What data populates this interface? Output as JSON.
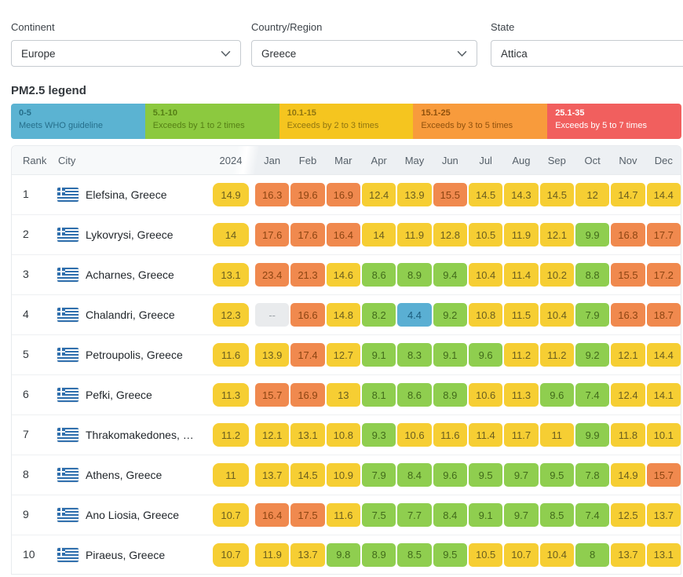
{
  "filters": [
    {
      "label": "Continent",
      "value": "Europe"
    },
    {
      "label": "Country/Region",
      "value": "Greece"
    },
    {
      "label": "State",
      "value": "Attica"
    }
  ],
  "legend": {
    "title": "PM2.5 legend",
    "bands": [
      {
        "range": "0-5",
        "desc": "Meets WHO guideline",
        "bg": "#5bb3d2",
        "fg": "#266f8b"
      },
      {
        "range": "5.1-10",
        "desc": "Exceeds by 1 to 2 times",
        "bg": "#8cc93f",
        "fg": "#557f15"
      },
      {
        "range": "10.1-15",
        "desc": "Exceeds by 2 to 3 times",
        "bg": "#f5c51f",
        "fg": "#8f7511"
      },
      {
        "range": "15.1-25",
        "desc": "Exceeds by 3 to 5 times",
        "bg": "#f89b3c",
        "fg": "#90510d"
      },
      {
        "range": "25.1-35",
        "desc": "Exceeds by 5 to 7 times",
        "bg": "#f15f5e",
        "fg": "#ffffff"
      }
    ]
  },
  "colors": {
    "blue": {
      "bg": "#5aafd3",
      "fg": "#1c5e7e"
    },
    "green": {
      "bg": "#8fce4f",
      "fg": "#426b1b"
    },
    "yellow": {
      "bg": "#f6ce33",
      "fg": "#6b5e1f"
    },
    "orange": {
      "bg": "#f0894e",
      "fg": "#8d4512"
    },
    "na": {
      "bg": "#e9ebed",
      "fg": "#9ba1a7"
    }
  },
  "table": {
    "rank_header": "Rank",
    "city_header": "City",
    "year_header": "2024",
    "month_headers": [
      "Jan",
      "Feb",
      "Mar",
      "Apr",
      "May",
      "Jun",
      "Jul",
      "Aug",
      "Sep",
      "Oct",
      "Nov",
      "Dec"
    ],
    "rows": [
      {
        "rank": "1",
        "city": "Elefsina, Greece",
        "year": {
          "v": "14.9",
          "c": "yellow"
        },
        "months": [
          {
            "v": "16.3",
            "c": "orange"
          },
          {
            "v": "19.6",
            "c": "orange"
          },
          {
            "v": "16.9",
            "c": "orange"
          },
          {
            "v": "12.4",
            "c": "yellow"
          },
          {
            "v": "13.9",
            "c": "yellow"
          },
          {
            "v": "15.5",
            "c": "orange"
          },
          {
            "v": "14.5",
            "c": "yellow"
          },
          {
            "v": "14.3",
            "c": "yellow"
          },
          {
            "v": "14.5",
            "c": "yellow"
          },
          {
            "v": "12",
            "c": "yellow"
          },
          {
            "v": "14.7",
            "c": "yellow"
          },
          {
            "v": "14.4",
            "c": "yellow"
          }
        ]
      },
      {
        "rank": "2",
        "city": "Lykovrysi, Greece",
        "year": {
          "v": "14",
          "c": "yellow"
        },
        "months": [
          {
            "v": "17.6",
            "c": "orange"
          },
          {
            "v": "17.6",
            "c": "orange"
          },
          {
            "v": "16.4",
            "c": "orange"
          },
          {
            "v": "14",
            "c": "yellow"
          },
          {
            "v": "11.9",
            "c": "yellow"
          },
          {
            "v": "12.8",
            "c": "yellow"
          },
          {
            "v": "10.5",
            "c": "yellow"
          },
          {
            "v": "11.9",
            "c": "yellow"
          },
          {
            "v": "12.1",
            "c": "yellow"
          },
          {
            "v": "9.9",
            "c": "green"
          },
          {
            "v": "16.8",
            "c": "orange"
          },
          {
            "v": "17.7",
            "c": "orange"
          }
        ]
      },
      {
        "rank": "3",
        "city": "Acharnes, Greece",
        "year": {
          "v": "13.1",
          "c": "yellow"
        },
        "months": [
          {
            "v": "23.4",
            "c": "orange"
          },
          {
            "v": "21.3",
            "c": "orange"
          },
          {
            "v": "14.6",
            "c": "yellow"
          },
          {
            "v": "8.6",
            "c": "green"
          },
          {
            "v": "8.9",
            "c": "green"
          },
          {
            "v": "9.4",
            "c": "green"
          },
          {
            "v": "10.4",
            "c": "yellow"
          },
          {
            "v": "11.4",
            "c": "yellow"
          },
          {
            "v": "10.2",
            "c": "yellow"
          },
          {
            "v": "8.8",
            "c": "green"
          },
          {
            "v": "15.5",
            "c": "orange"
          },
          {
            "v": "17.2",
            "c": "orange"
          }
        ]
      },
      {
        "rank": "4",
        "city": "Chalandri, Greece",
        "year": {
          "v": "12.3",
          "c": "yellow"
        },
        "months": [
          {
            "v": "--",
            "c": "na"
          },
          {
            "v": "16.6",
            "c": "orange"
          },
          {
            "v": "14.8",
            "c": "yellow"
          },
          {
            "v": "8.2",
            "c": "green"
          },
          {
            "v": "4.4",
            "c": "blue"
          },
          {
            "v": "9.2",
            "c": "green"
          },
          {
            "v": "10.8",
            "c": "yellow"
          },
          {
            "v": "11.5",
            "c": "yellow"
          },
          {
            "v": "10.4",
            "c": "yellow"
          },
          {
            "v": "7.9",
            "c": "green"
          },
          {
            "v": "16.3",
            "c": "orange"
          },
          {
            "v": "18.7",
            "c": "orange"
          }
        ]
      },
      {
        "rank": "5",
        "city": "Petroupolis, Greece",
        "year": {
          "v": "11.6",
          "c": "yellow"
        },
        "months": [
          {
            "v": "13.9",
            "c": "yellow"
          },
          {
            "v": "17.4",
            "c": "orange"
          },
          {
            "v": "12.7",
            "c": "yellow"
          },
          {
            "v": "9.1",
            "c": "green"
          },
          {
            "v": "8.3",
            "c": "green"
          },
          {
            "v": "9.1",
            "c": "green"
          },
          {
            "v": "9.6",
            "c": "green"
          },
          {
            "v": "11.2",
            "c": "yellow"
          },
          {
            "v": "11.2",
            "c": "yellow"
          },
          {
            "v": "9.2",
            "c": "green"
          },
          {
            "v": "12.1",
            "c": "yellow"
          },
          {
            "v": "14.4",
            "c": "yellow"
          }
        ]
      },
      {
        "rank": "6",
        "city": "Pefki, Greece",
        "year": {
          "v": "11.3",
          "c": "yellow"
        },
        "months": [
          {
            "v": "15.7",
            "c": "orange"
          },
          {
            "v": "16.9",
            "c": "orange"
          },
          {
            "v": "13",
            "c": "yellow"
          },
          {
            "v": "8.1",
            "c": "green"
          },
          {
            "v": "8.6",
            "c": "green"
          },
          {
            "v": "8.9",
            "c": "green"
          },
          {
            "v": "10.6",
            "c": "yellow"
          },
          {
            "v": "11.3",
            "c": "yellow"
          },
          {
            "v": "9.6",
            "c": "green"
          },
          {
            "v": "7.4",
            "c": "green"
          },
          {
            "v": "12.4",
            "c": "yellow"
          },
          {
            "v": "14.1",
            "c": "yellow"
          }
        ]
      },
      {
        "rank": "7",
        "city": "Thrakomakedones, …",
        "year": {
          "v": "11.2",
          "c": "yellow"
        },
        "months": [
          {
            "v": "12.1",
            "c": "yellow"
          },
          {
            "v": "13.1",
            "c": "yellow"
          },
          {
            "v": "10.8",
            "c": "yellow"
          },
          {
            "v": "9.3",
            "c": "green"
          },
          {
            "v": "10.6",
            "c": "yellow"
          },
          {
            "v": "11.6",
            "c": "yellow"
          },
          {
            "v": "11.4",
            "c": "yellow"
          },
          {
            "v": "11.7",
            "c": "yellow"
          },
          {
            "v": "11",
            "c": "yellow"
          },
          {
            "v": "9.9",
            "c": "green"
          },
          {
            "v": "11.8",
            "c": "yellow"
          },
          {
            "v": "10.1",
            "c": "yellow"
          }
        ]
      },
      {
        "rank": "8",
        "city": "Athens, Greece",
        "year": {
          "v": "11",
          "c": "yellow"
        },
        "months": [
          {
            "v": "13.7",
            "c": "yellow"
          },
          {
            "v": "14.5",
            "c": "yellow"
          },
          {
            "v": "10.9",
            "c": "yellow"
          },
          {
            "v": "7.9",
            "c": "green"
          },
          {
            "v": "8.4",
            "c": "green"
          },
          {
            "v": "9.6",
            "c": "green"
          },
          {
            "v": "9.5",
            "c": "green"
          },
          {
            "v": "9.7",
            "c": "green"
          },
          {
            "v": "9.5",
            "c": "green"
          },
          {
            "v": "7.8",
            "c": "green"
          },
          {
            "v": "14.9",
            "c": "yellow"
          },
          {
            "v": "15.7",
            "c": "orange"
          }
        ]
      },
      {
        "rank": "9",
        "city": "Ano Liosia, Greece",
        "year": {
          "v": "10.7",
          "c": "yellow"
        },
        "months": [
          {
            "v": "16.4",
            "c": "orange"
          },
          {
            "v": "17.5",
            "c": "orange"
          },
          {
            "v": "11.6",
            "c": "yellow"
          },
          {
            "v": "7.5",
            "c": "green"
          },
          {
            "v": "7.7",
            "c": "green"
          },
          {
            "v": "8.4",
            "c": "green"
          },
          {
            "v": "9.1",
            "c": "green"
          },
          {
            "v": "9.7",
            "c": "green"
          },
          {
            "v": "8.5",
            "c": "green"
          },
          {
            "v": "7.4",
            "c": "green"
          },
          {
            "v": "12.5",
            "c": "yellow"
          },
          {
            "v": "13.7",
            "c": "yellow"
          }
        ]
      },
      {
        "rank": "10",
        "city": "Piraeus, Greece",
        "year": {
          "v": "10.7",
          "c": "yellow"
        },
        "months": [
          {
            "v": "11.9",
            "c": "yellow"
          },
          {
            "v": "13.7",
            "c": "yellow"
          },
          {
            "v": "9.8",
            "c": "green"
          },
          {
            "v": "8.9",
            "c": "green"
          },
          {
            "v": "8.5",
            "c": "green"
          },
          {
            "v": "9.5",
            "c": "green"
          },
          {
            "v": "10.5",
            "c": "yellow"
          },
          {
            "v": "10.7",
            "c": "yellow"
          },
          {
            "v": "10.4",
            "c": "yellow"
          },
          {
            "v": "8",
            "c": "green"
          },
          {
            "v": "13.7",
            "c": "yellow"
          },
          {
            "v": "13.1",
            "c": "yellow"
          }
        ]
      }
    ]
  }
}
